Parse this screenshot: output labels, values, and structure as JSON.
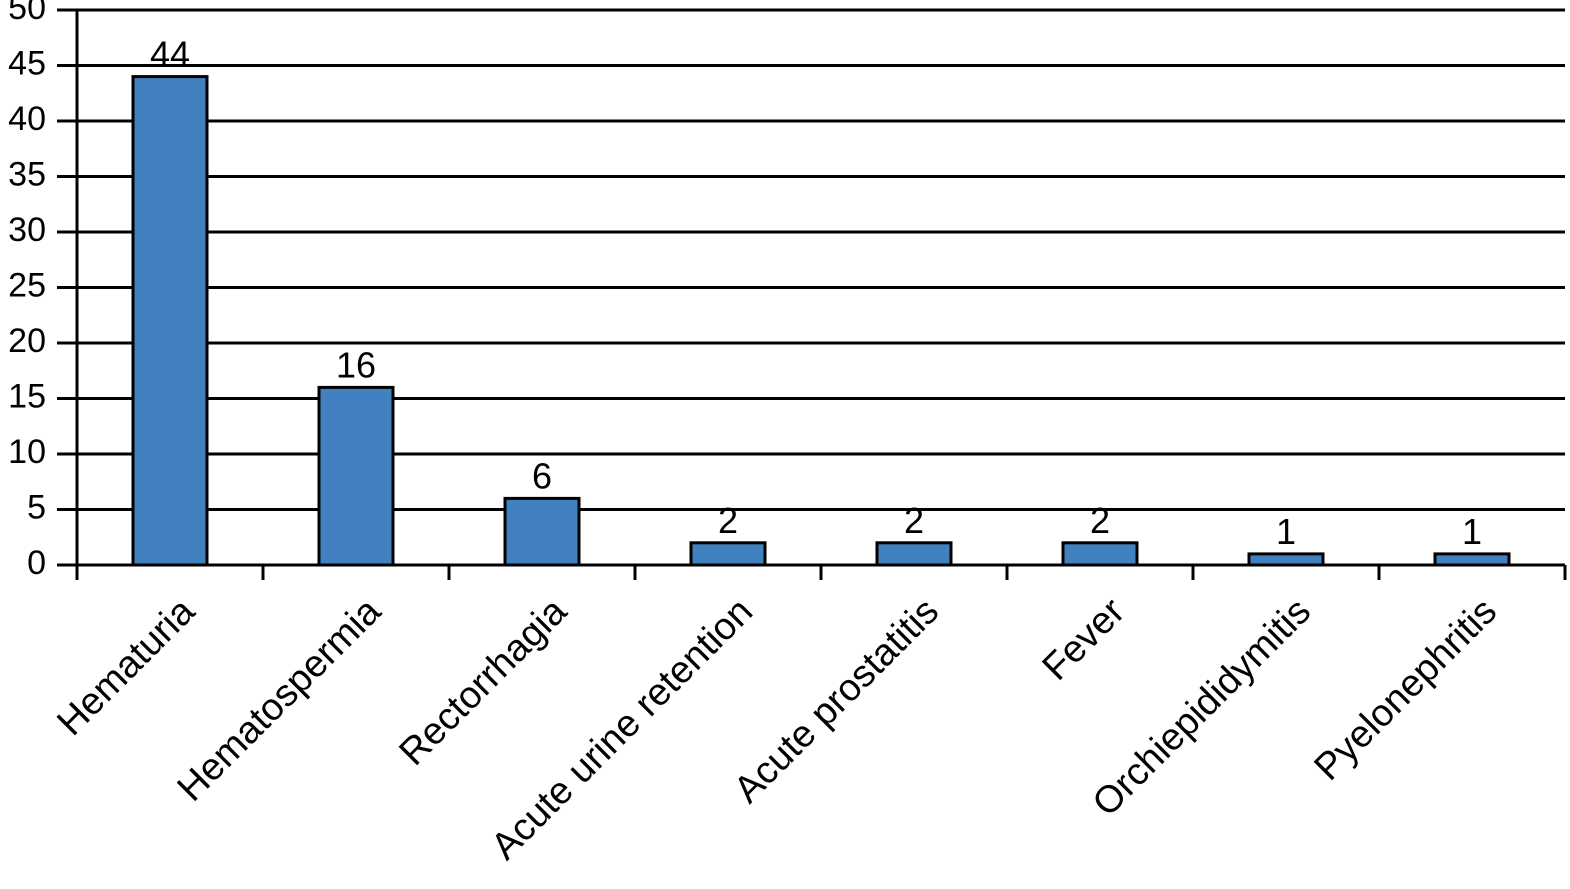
{
  "chart_data": {
    "type": "bar",
    "categories": [
      "Hematuria",
      "Hematospermia",
      "Rectorrhagia",
      "Acute urine retention",
      "Acute prostatitis",
      "Fever",
      "Orchiepididymitis",
      "Pyelonephritis"
    ],
    "values": [
      44,
      16,
      6,
      2,
      2,
      2,
      1,
      1
    ],
    "color": "#4281c0",
    "ylim": [
      0,
      50
    ],
    "yticks": [
      0,
      5,
      10,
      15,
      20,
      25,
      30,
      35,
      40,
      45,
      50
    ],
    "grid": true
  }
}
